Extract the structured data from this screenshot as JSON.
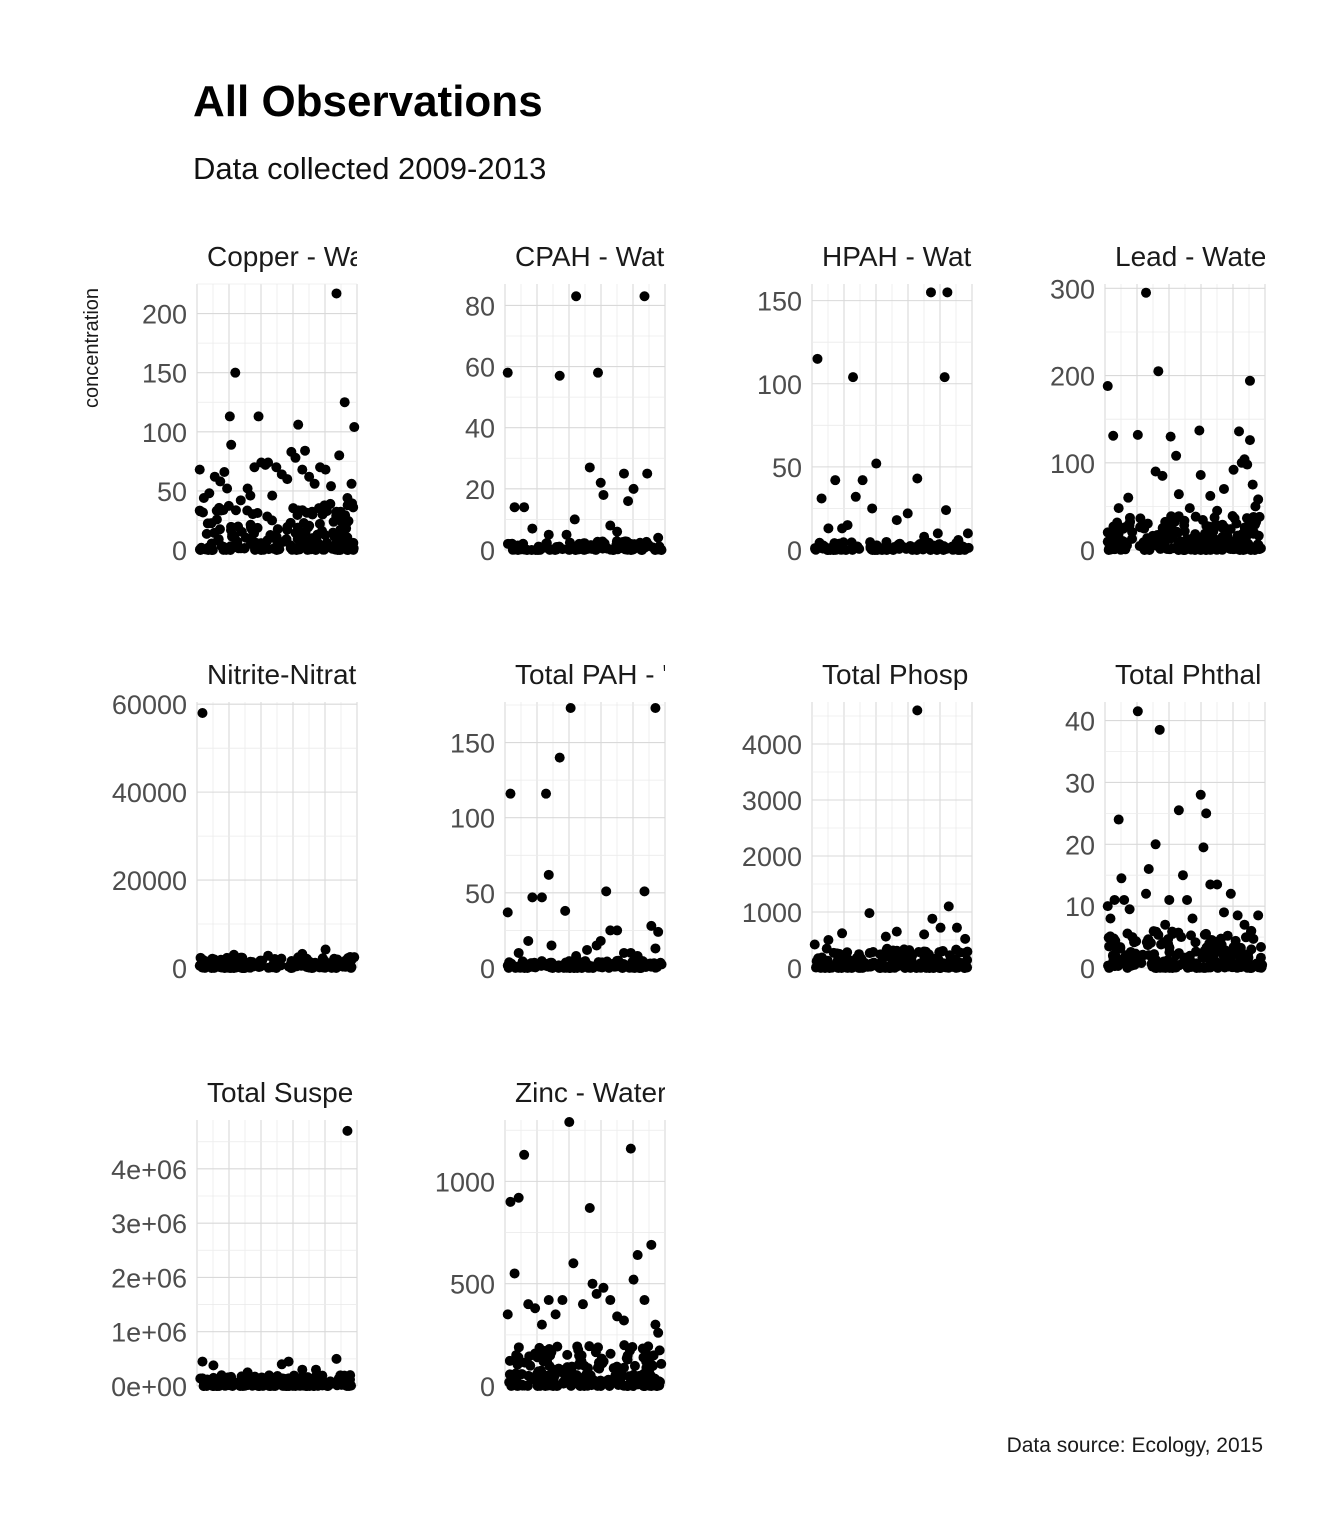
{
  "chart_data": {
    "type": "scatter",
    "title": "All Observations",
    "subtitle": "Data collected 2009-2013",
    "ylabel": "concentration",
    "xlabel": "",
    "caption": "Data source: Ecology, 2015",
    "grid": true,
    "panels": [
      {
        "strip": "Copper - Wa",
        "yticks": [
          0,
          50,
          100,
          150,
          200
        ],
        "tick_labels": [
          "0",
          "50",
          "100",
          "150",
          "200"
        ],
        "ylim": [
          0,
          225
        ],
        "outliers": [
          [
            0.2,
            68
          ],
          [
            0.23,
            44
          ],
          [
            0.27,
            48
          ],
          [
            0.31,
            62
          ],
          [
            0.35,
            58
          ],
          [
            0.38,
            66
          ],
          [
            0.4,
            52
          ],
          [
            0.42,
            113
          ],
          [
            0.43,
            89
          ],
          [
            0.46,
            150
          ],
          [
            0.5,
            42
          ],
          [
            0.55,
            52
          ],
          [
            0.57,
            46
          ],
          [
            0.6,
            70
          ],
          [
            0.63,
            113
          ],
          [
            0.65,
            74
          ],
          [
            0.68,
            72
          ],
          [
            0.7,
            74
          ],
          [
            0.73,
            46
          ],
          [
            0.76,
            70
          ],
          [
            0.8,
            64
          ],
          [
            0.84,
            60
          ],
          [
            0.87,
            83
          ],
          [
            0.9,
            78
          ],
          [
            0.92,
            106
          ],
          [
            0.95,
            68
          ],
          [
            0.97,
            84
          ],
          [
            1.0,
            62
          ],
          [
            1.04,
            56
          ],
          [
            1.08,
            70
          ],
          [
            1.12,
            68
          ],
          [
            1.16,
            54
          ],
          [
            1.2,
            217
          ],
          [
            1.22,
            80
          ],
          [
            1.26,
            125
          ],
          [
            1.28,
            44
          ],
          [
            1.31,
            56
          ],
          [
            1.33,
            104
          ]
        ],
        "cluster": {
          "count": 200,
          "max": 40
        }
      },
      {
        "strip": "CPAH - Wate",
        "yticks": [
          0,
          20,
          40,
          60,
          80
        ],
        "tick_labels": [
          "0",
          "20",
          "40",
          "60",
          "80"
        ],
        "ylim": [
          0,
          87
        ],
        "outliers": [
          [
            0.2,
            58
          ],
          [
            0.25,
            14
          ],
          [
            0.32,
            14
          ],
          [
            0.38,
            7
          ],
          [
            0.5,
            5
          ],
          [
            0.58,
            57
          ],
          [
            0.63,
            5
          ],
          [
            0.7,
            83
          ],
          [
            0.69,
            10
          ],
          [
            0.8,
            27
          ],
          [
            0.86,
            58
          ],
          [
            0.88,
            22
          ],
          [
            0.9,
            18
          ],
          [
            0.95,
            8
          ],
          [
            1.0,
            6
          ],
          [
            1.05,
            25
          ],
          [
            1.08,
            16
          ],
          [
            1.12,
            20
          ],
          [
            1.2,
            83
          ],
          [
            1.22,
            25
          ],
          [
            1.3,
            4
          ]
        ],
        "cluster": {
          "count": 120,
          "max": 3
        }
      },
      {
        "strip": "HPAH - Wate",
        "yticks": [
          0,
          50,
          100,
          150
        ],
        "tick_labels": [
          "0",
          "50",
          "100",
          "150"
        ],
        "ylim": [
          0,
          160
        ],
        "outliers": [
          [
            0.22,
            115
          ],
          [
            0.25,
            31
          ],
          [
            0.3,
            13
          ],
          [
            0.35,
            42
          ],
          [
            0.4,
            13
          ],
          [
            0.44,
            15
          ],
          [
            0.48,
            104
          ],
          [
            0.5,
            32
          ],
          [
            0.55,
            42
          ],
          [
            0.62,
            25
          ],
          [
            0.65,
            52
          ],
          [
            0.8,
            18
          ],
          [
            0.88,
            22
          ],
          [
            0.95,
            43
          ],
          [
            1.0,
            8
          ],
          [
            1.05,
            155
          ],
          [
            1.1,
            10
          ],
          [
            1.15,
            104
          ],
          [
            1.17,
            155
          ],
          [
            1.16,
            24
          ],
          [
            1.25,
            6
          ],
          [
            1.32,
            10
          ]
        ],
        "cluster": {
          "count": 120,
          "max": 5
        }
      },
      {
        "strip": "Lead - Water",
        "yticks": [
          0,
          100,
          200,
          300
        ],
        "tick_labels": [
          "0",
          "100",
          "200",
          "300"
        ],
        "ylim": [
          0,
          305
        ],
        "outliers": [
          [
            0.2,
            188
          ],
          [
            0.24,
            131
          ],
          [
            0.28,
            48
          ],
          [
            0.35,
            60
          ],
          [
            0.42,
            132
          ],
          [
            0.48,
            295
          ],
          [
            0.55,
            90
          ],
          [
            0.57,
            205
          ],
          [
            0.6,
            85
          ],
          [
            0.66,
            130
          ],
          [
            0.7,
            108
          ],
          [
            0.72,
            64
          ],
          [
            0.8,
            48
          ],
          [
            0.87,
            137
          ],
          [
            0.88,
            86
          ],
          [
            0.95,
            62
          ],
          [
            1.0,
            45
          ],
          [
            1.05,
            70
          ],
          [
            1.12,
            92
          ],
          [
            1.16,
            136
          ],
          [
            1.18,
            100
          ],
          [
            1.2,
            104
          ],
          [
            1.22,
            98
          ],
          [
            1.24,
            126
          ],
          [
            1.26,
            75
          ],
          [
            1.28,
            50
          ],
          [
            1.3,
            58
          ],
          [
            1.24,
            194
          ],
          [
            1.31,
            38
          ]
        ],
        "cluster": {
          "count": 200,
          "max": 40
        }
      },
      {
        "strip": "Nitrite-Nitrat",
        "yticks": [
          0,
          20000,
          40000,
          60000
        ],
        "tick_labels": [
          "0",
          "20000",
          "40000",
          "60000"
        ],
        "ylim": [
          0,
          60500
        ],
        "outliers": [
          [
            0.22,
            58000
          ],
          [
            0.45,
            3000
          ],
          [
            0.7,
            2800
          ],
          [
            0.95,
            3200
          ],
          [
            1.12,
            4200
          ],
          [
            1.3,
            2500
          ]
        ],
        "cluster": {
          "count": 150,
          "max": 2500
        }
      },
      {
        "strip": "Total PAH - '",
        "yticks": [
          0,
          50,
          100,
          150
        ],
        "tick_labels": [
          "0",
          "50",
          "100",
          "150"
        ],
        "ylim": [
          0,
          177
        ],
        "outliers": [
          [
            0.2,
            37
          ],
          [
            0.22,
            116
          ],
          [
            0.28,
            10
          ],
          [
            0.35,
            18
          ],
          [
            0.38,
            47
          ],
          [
            0.45,
            47
          ],
          [
            0.48,
            116
          ],
          [
            0.5,
            62
          ],
          [
            0.52,
            15
          ],
          [
            0.58,
            140
          ],
          [
            0.62,
            38
          ],
          [
            0.66,
            173
          ],
          [
            0.7,
            8
          ],
          [
            0.78,
            12
          ],
          [
            0.85,
            15
          ],
          [
            0.88,
            18
          ],
          [
            0.92,
            51
          ],
          [
            0.95,
            25
          ],
          [
            1.0,
            25
          ],
          [
            1.05,
            10
          ],
          [
            1.1,
            10
          ],
          [
            1.15,
            8
          ],
          [
            1.2,
            51
          ],
          [
            1.25,
            28
          ],
          [
            1.28,
            173
          ],
          [
            1.3,
            24
          ],
          [
            1.28,
            13
          ]
        ],
        "cluster": {
          "count": 130,
          "max": 5
        }
      },
      {
        "strip": "Total Phosp",
        "yticks": [
          0,
          1000,
          2000,
          3000,
          4000
        ],
        "tick_labels": [
          "0",
          "1000",
          "2000",
          "3000",
          "4000"
        ],
        "ylim": [
          0,
          4750
        ],
        "outliers": [
          [
            0.2,
            420
          ],
          [
            0.3,
            500
          ],
          [
            0.4,
            620
          ],
          [
            0.6,
            980
          ],
          [
            0.72,
            560
          ],
          [
            0.8,
            650
          ],
          [
            0.95,
            4600
          ],
          [
            1.0,
            600
          ],
          [
            1.06,
            880
          ],
          [
            1.12,
            720
          ],
          [
            1.18,
            1100
          ],
          [
            1.24,
            720
          ],
          [
            1.3,
            520
          ]
        ],
        "cluster": {
          "count": 200,
          "max": 350
        }
      },
      {
        "strip": "Total Phthal",
        "yticks": [
          0,
          10,
          20,
          30,
          40
        ],
        "tick_labels": [
          "0",
          "10",
          "20",
          "30",
          "40"
        ],
        "ylim": [
          0,
          43
        ],
        "outliers": [
          [
            0.2,
            10
          ],
          [
            0.22,
            8
          ],
          [
            0.25,
            11
          ],
          [
            0.28,
            24
          ],
          [
            0.3,
            14.5
          ],
          [
            0.32,
            11
          ],
          [
            0.36,
            9.5
          ],
          [
            0.38,
            5
          ],
          [
            0.42,
            41.5
          ],
          [
            0.48,
            12
          ],
          [
            0.5,
            16
          ],
          [
            0.55,
            20
          ],
          [
            0.58,
            38.5
          ],
          [
            0.62,
            7
          ],
          [
            0.65,
            11
          ],
          [
            0.72,
            25.5
          ],
          [
            0.75,
            15
          ],
          [
            0.78,
            11
          ],
          [
            0.82,
            8
          ],
          [
            0.88,
            28
          ],
          [
            0.92,
            25
          ],
          [
            0.9,
            19.5
          ],
          [
            0.95,
            13.5
          ],
          [
            1.0,
            13.5
          ],
          [
            1.05,
            9
          ],
          [
            1.1,
            12
          ],
          [
            1.15,
            8.5
          ],
          [
            1.2,
            7
          ],
          [
            1.25,
            6
          ],
          [
            1.3,
            8.5
          ]
        ],
        "cluster": {
          "count": 200,
          "max": 6
        }
      },
      {
        "strip": "Total Suspe",
        "yticks": [
          0,
          1000000,
          2000000,
          3000000,
          4000000
        ],
        "tick_labels": [
          "0e+00",
          "1e+06",
          "2e+06",
          "3e+06",
          "4e+06"
        ],
        "ylim": [
          0,
          4900000
        ],
        "outliers": [
          [
            0.22,
            450000
          ],
          [
            0.3,
            380000
          ],
          [
            0.55,
            250000
          ],
          [
            0.8,
            400000
          ],
          [
            0.85,
            450000
          ],
          [
            0.95,
            300000
          ],
          [
            1.05,
            300000
          ],
          [
            1.2,
            500000
          ],
          [
            1.28,
            4700000
          ],
          [
            1.3,
            200000
          ]
        ],
        "cluster": {
          "count": 180,
          "max": 200000
        }
      },
      {
        "strip": "Zinc - Water",
        "yticks": [
          0,
          500,
          1000
        ],
        "tick_labels": [
          "0",
          "500",
          "1000"
        ],
        "ylim": [
          0,
          1300
        ],
        "outliers": [
          [
            0.2,
            350
          ],
          [
            0.22,
            900
          ],
          [
            0.25,
            550
          ],
          [
            0.28,
            920
          ],
          [
            0.32,
            1130
          ],
          [
            0.35,
            400
          ],
          [
            0.4,
            380
          ],
          [
            0.45,
            300
          ],
          [
            0.5,
            420
          ],
          [
            0.55,
            350
          ],
          [
            0.6,
            420
          ],
          [
            0.65,
            1290
          ],
          [
            0.68,
            600
          ],
          [
            0.75,
            400
          ],
          [
            0.8,
            870
          ],
          [
            0.82,
            500
          ],
          [
            0.85,
            450
          ],
          [
            0.9,
            480
          ],
          [
            0.95,
            420
          ],
          [
            1.0,
            340
          ],
          [
            1.05,
            320
          ],
          [
            1.1,
            1160
          ],
          [
            1.12,
            520
          ],
          [
            1.15,
            640
          ],
          [
            1.2,
            420
          ],
          [
            1.25,
            690
          ],
          [
            1.28,
            300
          ],
          [
            1.3,
            260
          ]
        ],
        "cluster": {
          "count": 220,
          "max": 200
        }
      }
    ]
  }
}
